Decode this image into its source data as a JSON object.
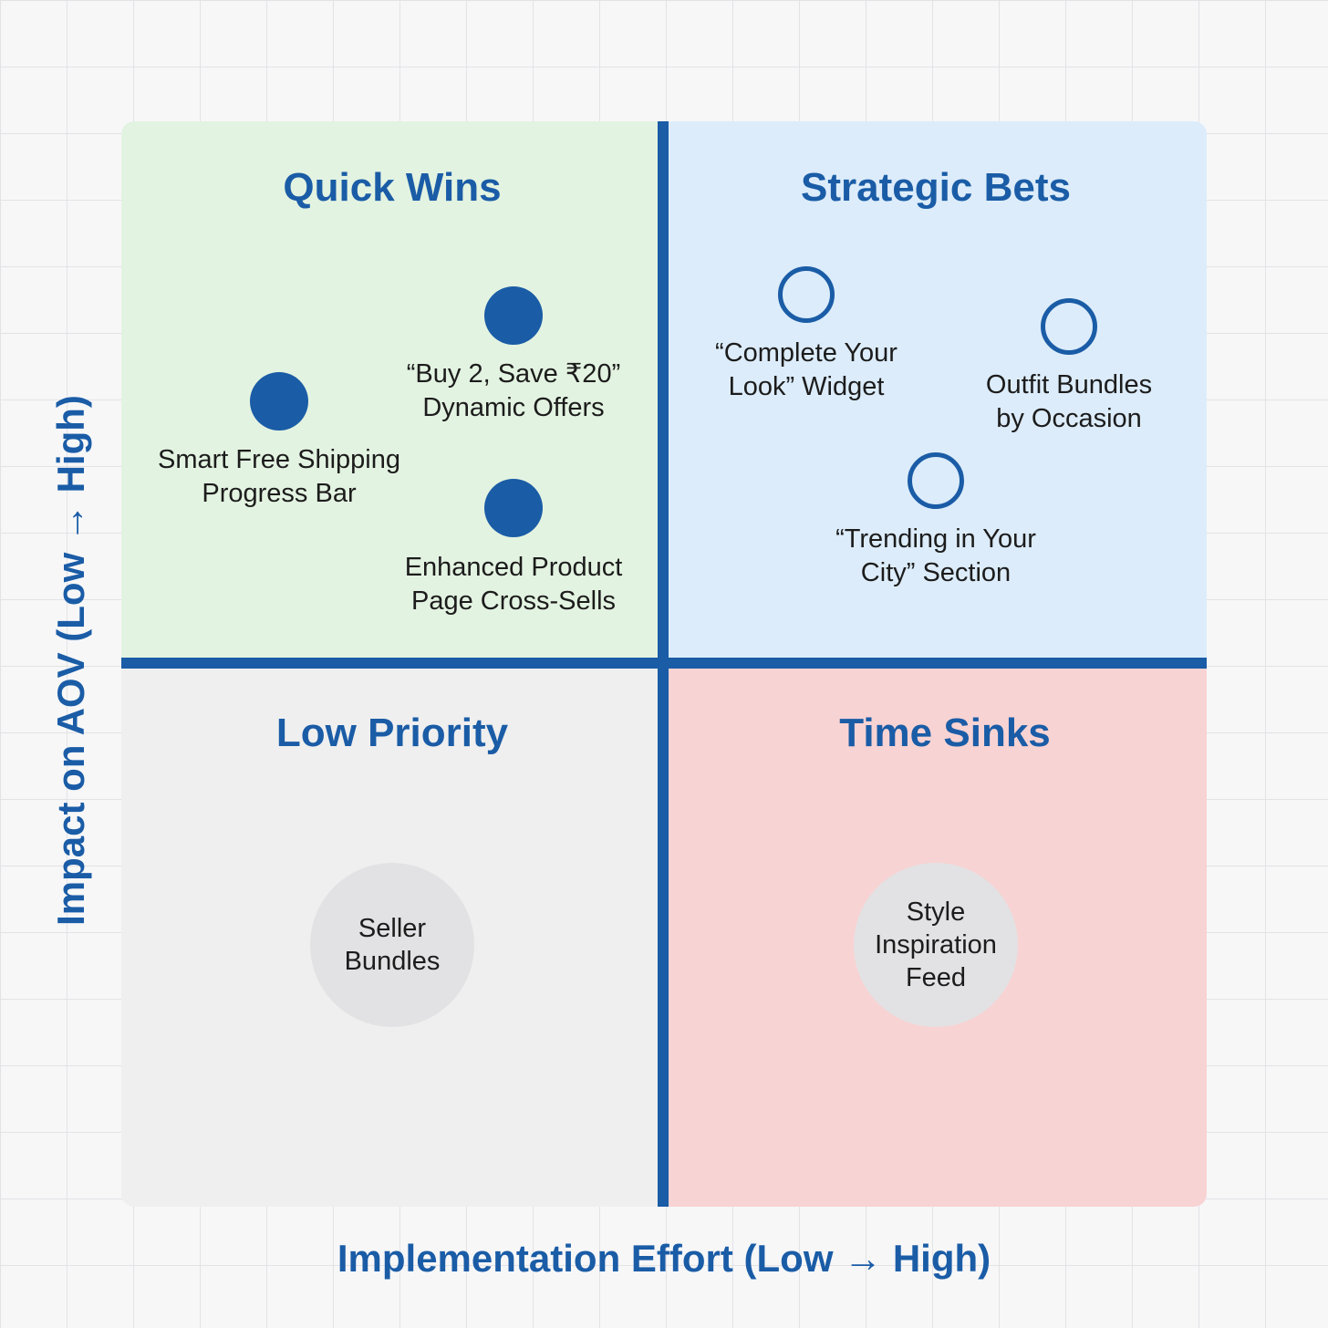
{
  "axes": {
    "x_label": "Implementation Effort (Low → High)",
    "y_label": "Impact on AOV (Low → High)"
  },
  "quadrants": {
    "top_left": "Quick Wins",
    "top_right": "Strategic Bets",
    "bottom_left": "Low Priority",
    "bottom_right": "Time Sinks"
  },
  "colors": {
    "accent": "#1a5ca6",
    "quick_wins_bg": "#e3f3e1",
    "strategic_bets_bg": "#dcecfa",
    "low_priority_bg": "#efefef",
    "time_sinks_bg": "#f8d3d3",
    "bubble": "#e2e2e4"
  },
  "items": {
    "buy2": {
      "line1": "“Buy 2, Save ₹20”",
      "line2": "Dynamic Offers",
      "marker": "filled-dot"
    },
    "shipping": {
      "line1": "Smart Free Shipping",
      "line2": "Progress Bar",
      "marker": "filled-dot"
    },
    "crosssell": {
      "line1": "Enhanced Product",
      "line2": "Page Cross-Sells",
      "marker": "filled-dot"
    },
    "complete_look": {
      "line1": "“Complete Your",
      "line2": "Look” Widget",
      "marker": "hollow-circle"
    },
    "outfit": {
      "line1": "Outfit Bundles",
      "line2": "by Occasion",
      "marker": "hollow-circle"
    },
    "trending": {
      "line1": "“Trending in Your",
      "line2": "City” Section",
      "marker": "hollow-circle"
    },
    "seller": {
      "line1": "Seller",
      "line2": "Bundles",
      "marker": "gray-bubble"
    },
    "style": {
      "line1": "Style",
      "line2": "Inspiration",
      "line3": "Feed",
      "marker": "gray-bubble"
    }
  }
}
